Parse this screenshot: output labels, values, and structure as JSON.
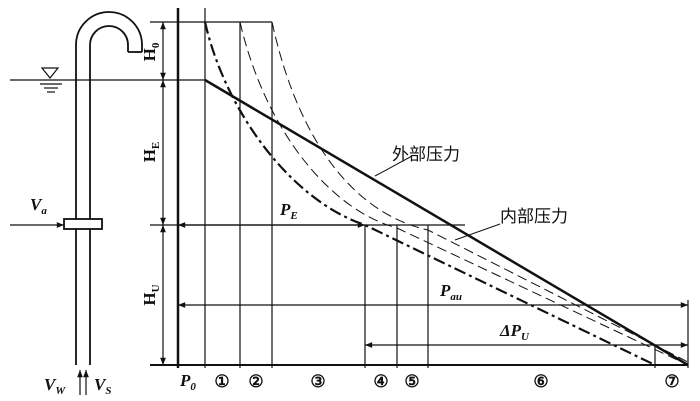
{
  "labels": {
    "h0": {
      "main": "H",
      "sub": "0"
    },
    "he": {
      "main": "H",
      "sub": "E"
    },
    "hu": {
      "main": "H",
      "sub": "U"
    },
    "va": {
      "main": "V",
      "sub": "a"
    },
    "vw": {
      "main": "V",
      "sub": "W"
    },
    "vs": {
      "main": "V",
      "sub": "S"
    },
    "p0": {
      "main": "P",
      "sub": "0"
    },
    "pe": {
      "main": "P",
      "sub": "E"
    },
    "pau": {
      "main": "P",
      "sub": "au"
    },
    "dpu": {
      "main": "ΔP",
      "sub": "U"
    }
  },
  "zones": [
    "①",
    "②",
    "③",
    "④",
    "⑤",
    "⑥",
    "⑦"
  ],
  "external_pressure": "外部压力",
  "internal_pressure": "内部压力"
}
